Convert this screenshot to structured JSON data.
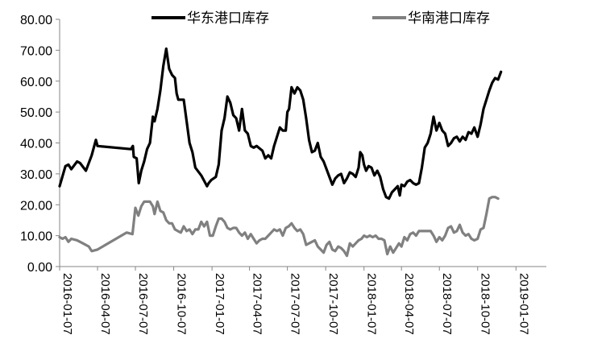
{
  "chart_data": {
    "type": "line",
    "title": "",
    "xlabel": "",
    "ylabel": "",
    "ylim": [
      0,
      80
    ],
    "y_ticks": [
      "0.00",
      "10.00",
      "20.00",
      "30.00",
      "40.00",
      "50.00",
      "60.00",
      "70.00",
      "80.00"
    ],
    "x_range": [
      "2016-01-07",
      "2019-03-21"
    ],
    "x_ticks": [
      "2016-01-07",
      "2016-04-07",
      "2016-07-07",
      "2016-10-07",
      "2017-01-07",
      "2017-04-07",
      "2017-07-07",
      "2017-10-07",
      "2018-01-07",
      "2018-04-07",
      "2018-07-07",
      "2018-10-07",
      "2019-01-07"
    ],
    "legend_position": "top",
    "grid": false,
    "series": [
      {
        "name": "华东港口库存",
        "color": "#000000",
        "points": [
          [
            "2016-01-07",
            26.0
          ],
          [
            "2016-01-21",
            32.5
          ],
          [
            "2016-01-28",
            33.0
          ],
          [
            "2016-02-04",
            31.5
          ],
          [
            "2016-02-18",
            34.0
          ],
          [
            "2016-02-25",
            33.5
          ],
          [
            "2016-03-10",
            31.0
          ],
          [
            "2016-03-24",
            36.0
          ],
          [
            "2016-04-03",
            41.0
          ],
          [
            "2016-04-07",
            39.0
          ],
          [
            "2016-06-26",
            38.0
          ],
          [
            "2016-07-01",
            39.0
          ],
          [
            "2016-07-03",
            35.5
          ],
          [
            "2016-07-10",
            35.0
          ],
          [
            "2016-07-15",
            27.0
          ],
          [
            "2016-07-21",
            31.0
          ],
          [
            "2016-07-28",
            34.0
          ],
          [
            "2016-08-04",
            38.0
          ],
          [
            "2016-08-11",
            40.0
          ],
          [
            "2016-08-18",
            48.5
          ],
          [
            "2016-08-22",
            47.0
          ],
          [
            "2016-08-29",
            51.0
          ],
          [
            "2016-09-05",
            57.0
          ],
          [
            "2016-09-12",
            65.0
          ],
          [
            "2016-09-19",
            70.5
          ],
          [
            "2016-09-26",
            64.0
          ],
          [
            "2016-10-03",
            62.0
          ],
          [
            "2016-10-10",
            61.0
          ],
          [
            "2016-10-14",
            56.0
          ],
          [
            "2016-10-18",
            54.0
          ],
          [
            "2016-10-31",
            54.0
          ],
          [
            "2016-11-07",
            47.0
          ],
          [
            "2016-11-14",
            40.0
          ],
          [
            "2016-11-21",
            37.0
          ],
          [
            "2016-11-28",
            32.0
          ],
          [
            "2016-12-12",
            29.5
          ],
          [
            "2016-12-26",
            26.0
          ],
          [
            "2016-12-30",
            27.0
          ],
          [
            "2017-01-05",
            28.0
          ],
          [
            "2017-01-16",
            29.0
          ],
          [
            "2017-01-23",
            33.0
          ],
          [
            "2017-01-30",
            44.0
          ],
          [
            "2017-02-06",
            48.0
          ],
          [
            "2017-02-13",
            55.0
          ],
          [
            "2017-02-20",
            53.0
          ],
          [
            "2017-02-27",
            49.0
          ],
          [
            "2017-03-06",
            48.0
          ],
          [
            "2017-03-13",
            44.0
          ],
          [
            "2017-03-20",
            51.0
          ],
          [
            "2017-03-27",
            44.0
          ],
          [
            "2017-04-03",
            43.0
          ],
          [
            "2017-04-10",
            39.0
          ],
          [
            "2017-04-17",
            38.5
          ],
          [
            "2017-04-24",
            39.0
          ],
          [
            "2017-05-08",
            37.5
          ],
          [
            "2017-05-15",
            35.0
          ],
          [
            "2017-05-22",
            36.0
          ],
          [
            "2017-05-29",
            35.0
          ],
          [
            "2017-06-05",
            39.0
          ],
          [
            "2017-06-12",
            42.0
          ],
          [
            "2017-06-19",
            45.0
          ],
          [
            "2017-06-26",
            44.0
          ],
          [
            "2017-07-03",
            44.0
          ],
          [
            "2017-07-07",
            50.0
          ],
          [
            "2017-07-11",
            51.0
          ],
          [
            "2017-07-17",
            58.0
          ],
          [
            "2017-07-24",
            56.0
          ],
          [
            "2017-07-31",
            58.0
          ],
          [
            "2017-08-07",
            57.0
          ],
          [
            "2017-08-14",
            54.0
          ],
          [
            "2017-08-21",
            48.0
          ],
          [
            "2017-08-28",
            41.0
          ],
          [
            "2017-09-04",
            37.0
          ],
          [
            "2017-09-11",
            37.5
          ],
          [
            "2017-09-18",
            40.0
          ],
          [
            "2017-09-25",
            35.5
          ],
          [
            "2017-10-02",
            34.0
          ],
          [
            "2017-10-09",
            31.5
          ],
          [
            "2017-10-16",
            29.0
          ],
          [
            "2017-10-23",
            26.5
          ],
          [
            "2017-10-30",
            28.5
          ],
          [
            "2017-11-06",
            29.5
          ],
          [
            "2017-11-13",
            30.0
          ],
          [
            "2017-11-20",
            27.0
          ],
          [
            "2017-11-27",
            28.5
          ],
          [
            "2017-12-04",
            30.5
          ],
          [
            "2017-12-11",
            30.0
          ],
          [
            "2017-12-18",
            29.0
          ],
          [
            "2017-12-25",
            32.0
          ],
          [
            "2017-12-29",
            37.0
          ],
          [
            "2018-01-03",
            36.0
          ],
          [
            "2018-01-07",
            33.0
          ],
          [
            "2018-01-12",
            31.0
          ],
          [
            "2018-01-18",
            32.5
          ],
          [
            "2018-01-25",
            32.0
          ],
          [
            "2018-02-01",
            29.5
          ],
          [
            "2018-02-08",
            31.0
          ],
          [
            "2018-02-15",
            29.0
          ],
          [
            "2018-02-22",
            25.0
          ],
          [
            "2018-03-01",
            22.5
          ],
          [
            "2018-03-08",
            22.0
          ],
          [
            "2018-03-15",
            24.0
          ],
          [
            "2018-03-22",
            25.0
          ],
          [
            "2018-03-29",
            26.0
          ],
          [
            "2018-04-03",
            23.0
          ],
          [
            "2018-04-07",
            26.5
          ],
          [
            "2018-04-14",
            26.0
          ],
          [
            "2018-04-21",
            27.5
          ],
          [
            "2018-04-28",
            28.0
          ],
          [
            "2018-05-05",
            27.0
          ],
          [
            "2018-05-12",
            26.5
          ],
          [
            "2018-05-19",
            27.0
          ],
          [
            "2018-05-26",
            32.0
          ],
          [
            "2018-06-02",
            38.5
          ],
          [
            "2018-06-09",
            40.0
          ],
          [
            "2018-06-16",
            43.0
          ],
          [
            "2018-06-23",
            48.5
          ],
          [
            "2018-06-30",
            44.0
          ],
          [
            "2018-07-07",
            46.5
          ],
          [
            "2018-07-14",
            44.0
          ],
          [
            "2018-07-21",
            43.0
          ],
          [
            "2018-07-28",
            39.0
          ],
          [
            "2018-08-04",
            40.0
          ],
          [
            "2018-08-11",
            41.5
          ],
          [
            "2018-08-18",
            42.0
          ],
          [
            "2018-08-25",
            40.5
          ],
          [
            "2018-09-01",
            42.0
          ],
          [
            "2018-09-08",
            41.0
          ],
          [
            "2018-09-15",
            43.5
          ],
          [
            "2018-09-22",
            43.0
          ],
          [
            "2018-09-29",
            45.0
          ],
          [
            "2018-10-07",
            42.0
          ],
          [
            "2018-10-14",
            46.0
          ],
          [
            "2018-10-21",
            51.0
          ],
          [
            "2018-10-28",
            54.0
          ],
          [
            "2018-11-04",
            57.0
          ],
          [
            "2018-11-11",
            59.5
          ],
          [
            "2018-11-18",
            61.0
          ],
          [
            "2018-11-25",
            60.5
          ],
          [
            "2018-12-02",
            63.0
          ]
        ]
      },
      {
        "name": "华南港口库存",
        "color": "#808080",
        "points": [
          [
            "2016-01-07",
            9.5
          ],
          [
            "2016-01-14",
            9.0
          ],
          [
            "2016-01-21",
            9.5
          ],
          [
            "2016-01-28",
            8.0
          ],
          [
            "2016-02-04",
            9.0
          ],
          [
            "2016-02-18",
            8.5
          ],
          [
            "2016-03-03",
            7.5
          ],
          [
            "2016-03-17",
            6.5
          ],
          [
            "2016-03-24",
            5.0
          ],
          [
            "2016-04-07",
            5.5
          ],
          [
            "2016-06-16",
            11.0
          ],
          [
            "2016-06-30",
            10.5
          ],
          [
            "2016-07-07",
            19.0
          ],
          [
            "2016-07-14",
            16.5
          ],
          [
            "2016-07-21",
            19.5
          ],
          [
            "2016-07-28",
            21.0
          ],
          [
            "2016-08-11",
            21.0
          ],
          [
            "2016-08-18",
            19.5
          ],
          [
            "2016-08-22",
            17.0
          ],
          [
            "2016-08-29",
            21.0
          ],
          [
            "2016-09-05",
            18.0
          ],
          [
            "2016-09-12",
            17.5
          ],
          [
            "2016-09-19",
            15.0
          ],
          [
            "2016-09-26",
            14.0
          ],
          [
            "2016-10-03",
            14.0
          ],
          [
            "2016-10-10",
            12.0
          ],
          [
            "2016-10-17",
            11.5
          ],
          [
            "2016-10-24",
            11.0
          ],
          [
            "2016-10-31",
            13.0
          ],
          [
            "2016-11-07",
            11.5
          ],
          [
            "2016-11-14",
            12.0
          ],
          [
            "2016-11-21",
            10.5
          ],
          [
            "2016-11-28",
            12.0
          ],
          [
            "2016-12-05",
            12.0
          ],
          [
            "2016-12-12",
            14.5
          ],
          [
            "2016-12-19",
            13.0
          ],
          [
            "2016-12-26",
            14.5
          ],
          [
            "2017-01-02",
            10.0
          ],
          [
            "2017-01-09",
            10.0
          ],
          [
            "2017-01-16",
            13.0
          ],
          [
            "2017-01-23",
            15.5
          ],
          [
            "2017-01-30",
            15.5
          ],
          [
            "2017-02-06",
            14.5
          ],
          [
            "2017-02-13",
            12.5
          ],
          [
            "2017-02-20",
            12.0
          ],
          [
            "2017-02-27",
            12.5
          ],
          [
            "2017-03-06",
            12.5
          ],
          [
            "2017-03-13",
            11.0
          ],
          [
            "2017-03-20",
            10.0
          ],
          [
            "2017-03-27",
            11.0
          ],
          [
            "2017-04-03",
            9.0
          ],
          [
            "2017-04-10",
            10.5
          ],
          [
            "2017-04-17",
            9.0
          ],
          [
            "2017-04-24",
            7.5
          ],
          [
            "2017-05-01",
            8.5
          ],
          [
            "2017-05-08",
            9.0
          ],
          [
            "2017-05-15",
            9.0
          ],
          [
            "2017-05-22",
            10.0
          ],
          [
            "2017-05-29",
            11.0
          ],
          [
            "2017-06-05",
            12.0
          ],
          [
            "2017-06-12",
            11.5
          ],
          [
            "2017-06-19",
            12.0
          ],
          [
            "2017-06-26",
            10.0
          ],
          [
            "2017-07-03",
            12.5
          ],
          [
            "2017-07-10",
            13.0
          ],
          [
            "2017-07-17",
            14.0
          ],
          [
            "2017-07-24",
            12.5
          ],
          [
            "2017-07-31",
            11.5
          ],
          [
            "2017-08-07",
            12.0
          ],
          [
            "2017-08-14",
            10.5
          ],
          [
            "2017-08-21",
            7.0
          ],
          [
            "2017-08-28",
            7.5
          ],
          [
            "2017-09-04",
            8.0
          ],
          [
            "2017-09-11",
            8.5
          ],
          [
            "2017-09-18",
            6.5
          ],
          [
            "2017-09-25",
            5.5
          ],
          [
            "2017-10-02",
            4.5
          ],
          [
            "2017-10-09",
            7.0
          ],
          [
            "2017-10-16",
            8.0
          ],
          [
            "2017-10-23",
            5.5
          ],
          [
            "2017-10-30",
            5.0
          ],
          [
            "2017-11-06",
            6.5
          ],
          [
            "2017-11-13",
            6.0
          ],
          [
            "2017-11-20",
            5.0
          ],
          [
            "2017-11-27",
            3.5
          ],
          [
            "2017-12-04",
            7.5
          ],
          [
            "2017-12-11",
            6.5
          ],
          [
            "2017-12-18",
            7.5
          ],
          [
            "2017-12-25",
            8.5
          ],
          [
            "2018-01-01",
            9.0
          ],
          [
            "2018-01-07",
            10.0
          ],
          [
            "2018-01-14",
            9.5
          ],
          [
            "2018-01-21",
            10.0
          ],
          [
            "2018-01-28",
            9.5
          ],
          [
            "2018-02-04",
            10.0
          ],
          [
            "2018-02-11",
            9.0
          ],
          [
            "2018-02-18",
            9.0
          ],
          [
            "2018-02-25",
            8.5
          ],
          [
            "2018-03-04",
            4.0
          ],
          [
            "2018-03-11",
            6.5
          ],
          [
            "2018-03-18",
            4.5
          ],
          [
            "2018-03-25",
            6.0
          ],
          [
            "2018-04-01",
            7.5
          ],
          [
            "2018-04-07",
            6.5
          ],
          [
            "2018-04-14",
            9.5
          ],
          [
            "2018-04-21",
            8.5
          ],
          [
            "2018-04-28",
            10.5
          ],
          [
            "2018-05-05",
            11.0
          ],
          [
            "2018-05-12",
            10.0
          ],
          [
            "2018-05-19",
            11.5
          ],
          [
            "2018-05-26",
            11.5
          ],
          [
            "2018-06-02",
            11.5
          ],
          [
            "2018-06-09",
            11.5
          ],
          [
            "2018-06-16",
            11.5
          ],
          [
            "2018-06-23",
            10.0
          ],
          [
            "2018-06-30",
            8.0
          ],
          [
            "2018-07-07",
            9.5
          ],
          [
            "2018-07-14",
            8.5
          ],
          [
            "2018-07-21",
            10.0
          ],
          [
            "2018-07-28",
            12.5
          ],
          [
            "2018-08-04",
            13.0
          ],
          [
            "2018-08-11",
            11.0
          ],
          [
            "2018-08-18",
            11.5
          ],
          [
            "2018-08-25",
            13.5
          ],
          [
            "2018-09-01",
            11.0
          ],
          [
            "2018-09-08",
            10.0
          ],
          [
            "2018-09-15",
            10.5
          ],
          [
            "2018-09-22",
            9.0
          ],
          [
            "2018-09-29",
            8.5
          ],
          [
            "2018-10-07",
            9.0
          ],
          [
            "2018-10-14",
            12.0
          ],
          [
            "2018-10-21",
            12.5
          ],
          [
            "2018-10-28",
            17.0
          ],
          [
            "2018-11-04",
            22.0
          ],
          [
            "2018-11-11",
            22.5
          ],
          [
            "2018-11-18",
            22.5
          ],
          [
            "2018-11-25",
            22.0
          ]
        ]
      }
    ]
  }
}
